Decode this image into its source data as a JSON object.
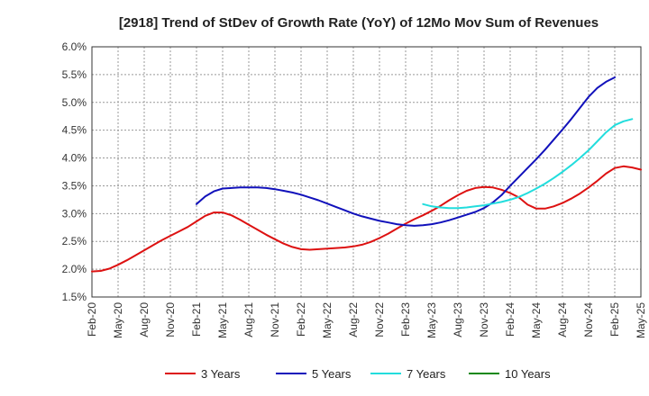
{
  "chart_data": {
    "type": "line",
    "title": "[2918]  Trend of StDev of Growth Rate (YoY) of 12Mo Mov Sum of Revenues",
    "xlabel": "",
    "ylabel": "",
    "ylim": [
      1.5,
      6.0
    ],
    "y_ticks": [
      "1.5%",
      "2.0%",
      "2.5%",
      "3.0%",
      "3.5%",
      "4.0%",
      "4.5%",
      "5.0%",
      "5.5%",
      "6.0%"
    ],
    "x_tick_labels": [
      "Feb-20",
      "May-20",
      "Aug-20",
      "Nov-20",
      "Feb-21",
      "May-21",
      "Aug-21",
      "Nov-21",
      "Feb-22",
      "May-22",
      "Aug-22",
      "Nov-22",
      "Feb-23",
      "May-23",
      "Aug-23",
      "Nov-23",
      "Feb-24",
      "May-24",
      "Aug-24",
      "Nov-24",
      "Feb-25",
      "May-25"
    ],
    "x_index_range": [
      0,
      63
    ],
    "grid": true,
    "legend_position": "bottom",
    "series": [
      {
        "name": "3 Years",
        "color": "#dd1111",
        "start_index": 0,
        "values": [
          1.96,
          1.97,
          2.01,
          2.08,
          2.16,
          2.25,
          2.34,
          2.43,
          2.52,
          2.6,
          2.68,
          2.76,
          2.86,
          2.96,
          3.02,
          3.02,
          2.97,
          2.89,
          2.8,
          2.71,
          2.62,
          2.54,
          2.46,
          2.4,
          2.36,
          2.35,
          2.36,
          2.37,
          2.38,
          2.39,
          2.41,
          2.44,
          2.49,
          2.56,
          2.64,
          2.73,
          2.82,
          2.9,
          2.97,
          3.05,
          3.14,
          3.24,
          3.33,
          3.41,
          3.46,
          3.48,
          3.47,
          3.43,
          3.37,
          3.29,
          3.16,
          3.09,
          3.09,
          3.13,
          3.19,
          3.27,
          3.36,
          3.47,
          3.59,
          3.72,
          3.82,
          3.85,
          3.83,
          3.79
        ]
      },
      {
        "name": "5 Years",
        "color": "#1111bb",
        "start_index": 12,
        "values": [
          3.17,
          3.31,
          3.4,
          3.45,
          3.46,
          3.47,
          3.47,
          3.47,
          3.46,
          3.44,
          3.41,
          3.38,
          3.34,
          3.29,
          3.24,
          3.18,
          3.12,
          3.06,
          3.0,
          2.95,
          2.91,
          2.87,
          2.84,
          2.81,
          2.79,
          2.78,
          2.79,
          2.81,
          2.84,
          2.88,
          2.93,
          2.98,
          3.03,
          3.1,
          3.2,
          3.33,
          3.5,
          3.66,
          3.82,
          3.98,
          4.15,
          4.33,
          4.51,
          4.7,
          4.9,
          5.1,
          5.26,
          5.37,
          5.45
        ]
      },
      {
        "name": "7 Years",
        "color": "#22dddd",
        "start_index": 38,
        "values": [
          3.17,
          3.13,
          3.11,
          3.1,
          3.1,
          3.11,
          3.13,
          3.15,
          3.18,
          3.21,
          3.25,
          3.3,
          3.37,
          3.45,
          3.54,
          3.64,
          3.75,
          3.87,
          4.0,
          4.14,
          4.3,
          4.46,
          4.59,
          4.66,
          4.7
        ]
      },
      {
        "name": "10 Years",
        "color": "#118811",
        "start_index": 0,
        "values": []
      }
    ]
  }
}
